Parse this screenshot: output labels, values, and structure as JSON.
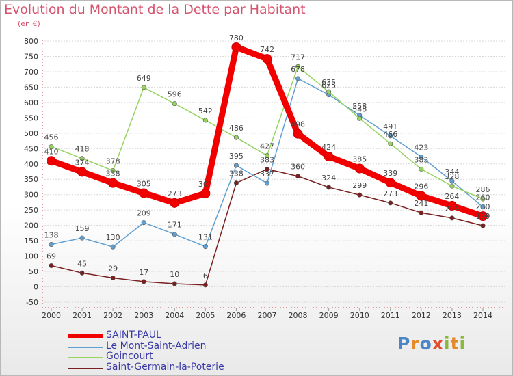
{
  "title": "Evolution du Montant de la Dette par Habitant",
  "subtitle": "(en €)",
  "logo": {
    "letters": [
      "P",
      "r",
      "o",
      "x",
      "i",
      "t",
      "i"
    ],
    "colors": [
      "#4c86c6",
      "#e48a2a",
      "#4c86c6",
      "#e14c2e",
      "#8ab83e",
      "#e48a2a",
      "#8ab83e"
    ]
  },
  "chart_data": {
    "type": "line",
    "title": "Evolution du Montant de la Dette par Habitant",
    "ylabel": "(en €)",
    "xlabel": "",
    "ylim": [
      -50,
      800
    ],
    "y_ticks": [
      -50,
      0,
      50,
      100,
      150,
      200,
      250,
      300,
      350,
      400,
      450,
      500,
      550,
      600,
      650,
      700,
      750,
      800
    ],
    "categories": [
      "2000",
      "2001",
      "2002",
      "2003",
      "2004",
      "2005",
      "2006",
      "2007",
      "2008",
      "2009",
      "2010",
      "2011",
      "2012",
      "2013",
      "2014"
    ],
    "grid": "horizontal",
    "series": [
      {
        "name": "Saint-Germain-la-Poterie",
        "color": "#7a1f1f",
        "values": [
          69,
          45,
          29,
          17,
          10,
          6,
          338,
          383,
          360,
          324,
          299,
          273,
          241,
          224,
          199
        ]
      },
      {
        "name": "Le Mont-Saint-Adrien",
        "color": "#5f9fd1",
        "values": [
          138,
          159,
          130,
          209,
          171,
          131,
          395,
          337,
          678,
          625,
          558,
          491,
          423,
          344,
          260
        ]
      },
      {
        "name": "Goincourt",
        "color": "#95d45f",
        "values": [
          456,
          418,
          378,
          649,
          596,
          542,
          486,
          427,
          717,
          635,
          548,
          466,
          383,
          328,
          286
        ]
      },
      {
        "name": "SAINT-PAUL",
        "color": "#f20000",
        "values": [
          410,
          374,
          338,
          305,
          273,
          304,
          780,
          742,
          498,
          424,
          385,
          339,
          296,
          264,
          230
        ]
      }
    ],
    "legend": [
      "SAINT-PAUL",
      "Le Mont-Saint-Adrien",
      "Goincourt",
      "Saint-Germain-la-Poterie"
    ]
  }
}
